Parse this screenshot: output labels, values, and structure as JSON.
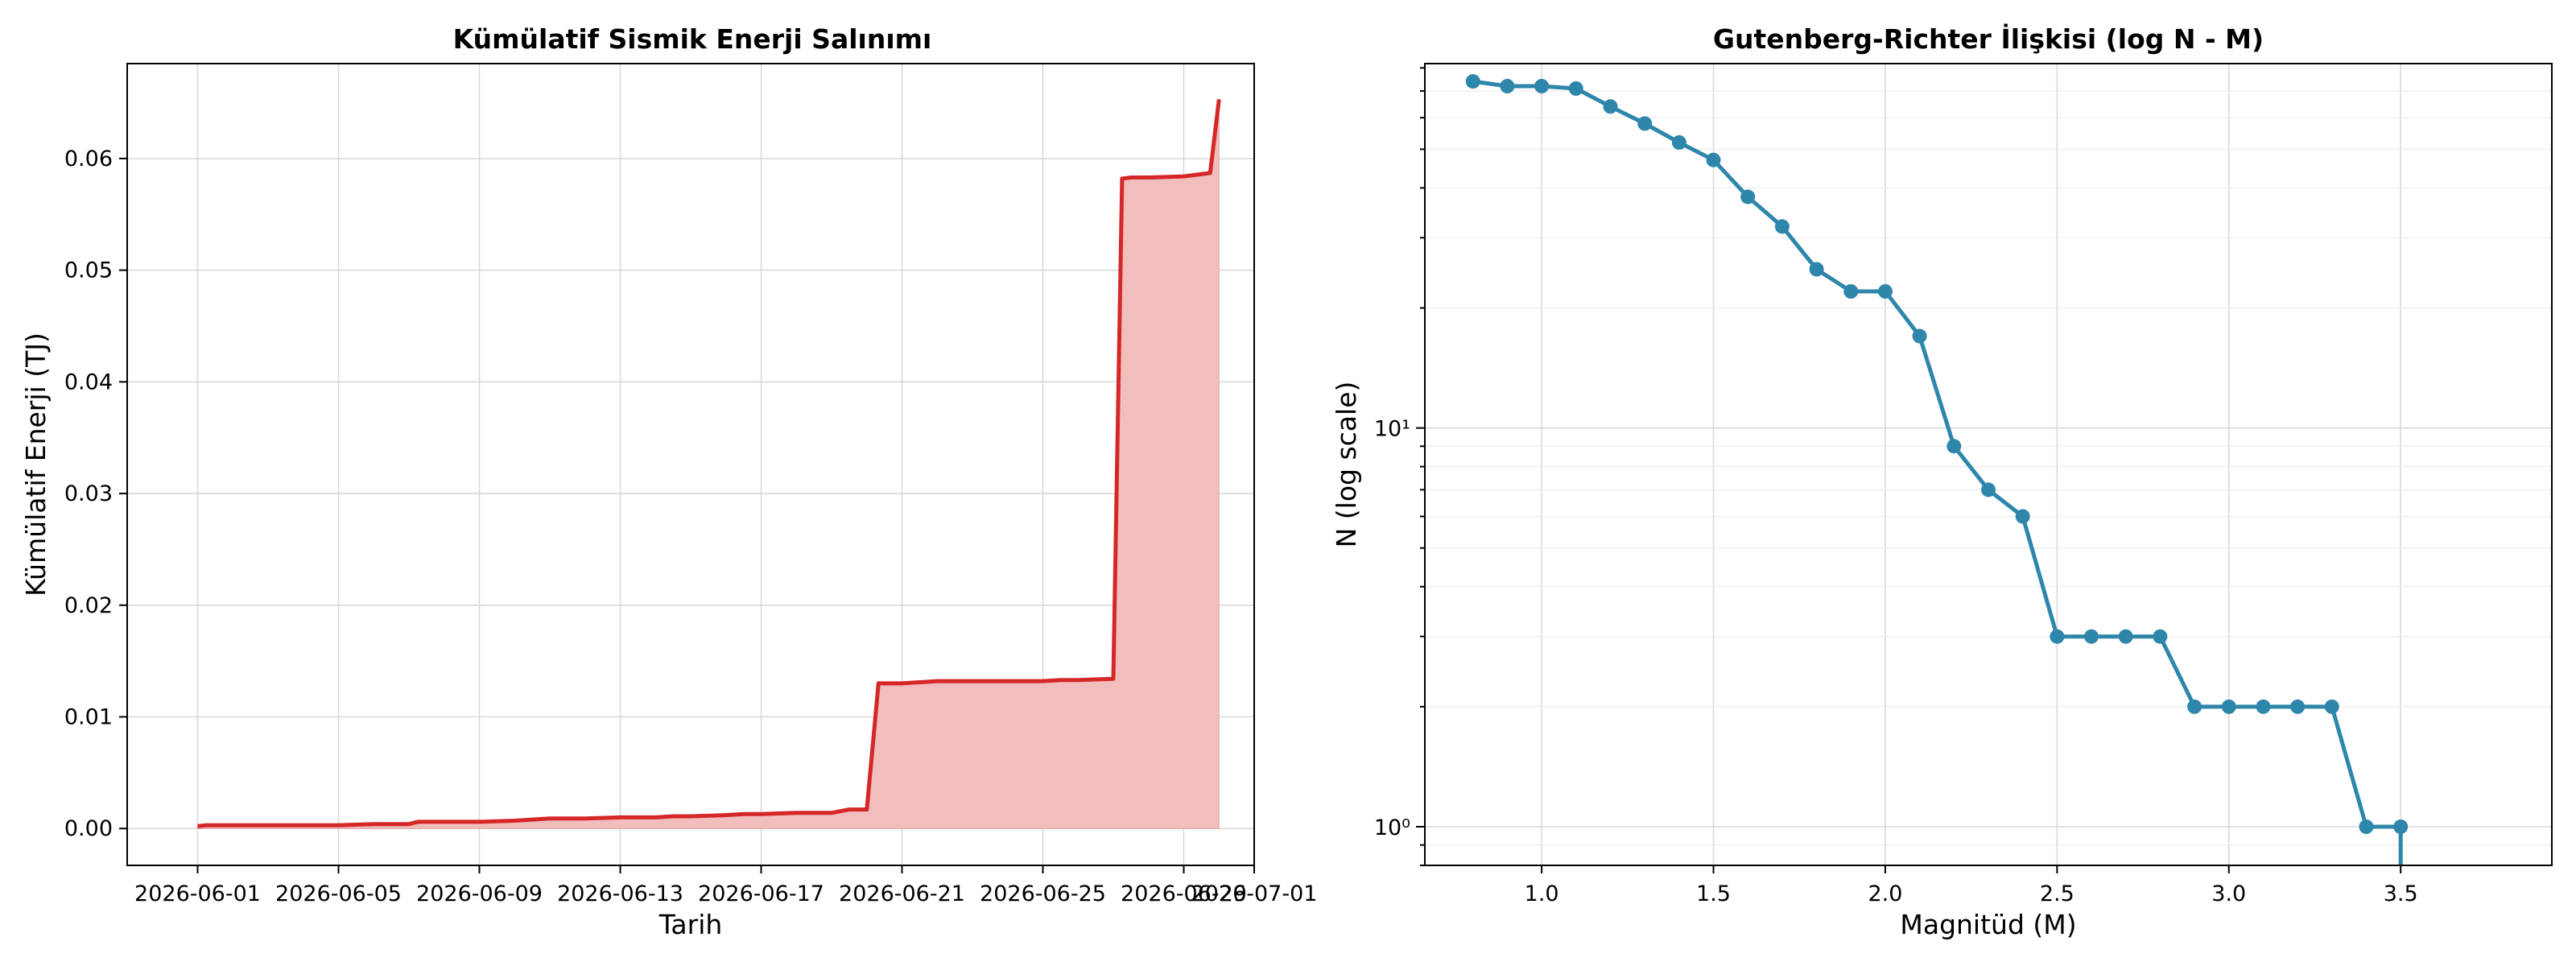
{
  "chart_data": [
    {
      "type": "area",
      "title": "Kümülatif Sismik Enerji Salınımı",
      "xlabel": "Tarih",
      "ylabel": "Kümülatif Enerji (TJ)",
      "x_ticks": [
        "2026-06-01",
        "2026-06-05",
        "2026-06-09",
        "2026-06-13",
        "2026-06-17",
        "2026-06-21",
        "2026-06-25",
        "2026-06-29",
        "2026-07-01"
      ],
      "y_ticks": [
        "0.00",
        "0.01",
        "0.02",
        "0.03",
        "0.04",
        "0.05",
        "0.06"
      ],
      "xlim": [
        "2026-05-30",
        "2026-07-01"
      ],
      "ylim": [
        -0.0033,
        0.0685
      ],
      "grid": true,
      "line_color": "#d62728",
      "fill_color": "#f1bdbd",
      "x": [
        "2026-06-01",
        "2026-06-01T06",
        "2026-06-03",
        "2026-06-05",
        "2026-06-06",
        "2026-06-07",
        "2026-06-07T06",
        "2026-06-08",
        "2026-06-09",
        "2026-06-10",
        "2026-06-11",
        "2026-06-12",
        "2026-06-13",
        "2026-06-14",
        "2026-06-14T12",
        "2026-06-15",
        "2026-06-16",
        "2026-06-16T12",
        "2026-06-17",
        "2026-06-18",
        "2026-06-19",
        "2026-06-19T12",
        "2026-06-20",
        "2026-06-20T08",
        "2026-06-20T16",
        "2026-06-21",
        "2026-06-22",
        "2026-06-23",
        "2026-06-24",
        "2026-06-25",
        "2026-06-25T12",
        "2026-06-26",
        "2026-06-27",
        "2026-06-27T06",
        "2026-06-27T12",
        "2026-06-28",
        "2026-06-29",
        "2026-06-29T18",
        "2026-06-30"
      ],
      "y": [
        0.0002,
        0.0003,
        0.0003,
        0.0003,
        0.0004,
        0.0004,
        0.0006,
        0.0006,
        0.0006,
        0.0007,
        0.0009,
        0.0009,
        0.001,
        0.001,
        0.0011,
        0.0011,
        0.0012,
        0.0013,
        0.0013,
        0.0014,
        0.0014,
        0.0017,
        0.0017,
        0.013,
        0.013,
        0.013,
        0.0132,
        0.0132,
        0.0132,
        0.0132,
        0.0133,
        0.0133,
        0.0134,
        0.0582,
        0.0583,
        0.0583,
        0.0584,
        0.0587,
        0.0653
      ]
    },
    {
      "type": "line",
      "title": "Gutenberg-Richter İlişkisi (log N - M)",
      "xlabel": "Magnitüd (M)",
      "ylabel": "N (log scale)",
      "x_ticks": [
        "1.0",
        "1.5",
        "2.0",
        "2.5",
        "3.0",
        "3.5"
      ],
      "y_ticks": [
        "10⁰",
        "10¹"
      ],
      "xlim": [
        0.66,
        3.94
      ],
      "ylim": [
        0.8,
        82
      ],
      "y_scale": "log",
      "grid": true,
      "color": "#2e86ab",
      "x": [
        0.8,
        0.9,
        1.0,
        1.1,
        1.2,
        1.3,
        1.4,
        1.5,
        1.6,
        1.7,
        1.8,
        1.9,
        2.0,
        2.1,
        2.2,
        2.3,
        2.4,
        2.5,
        2.6,
        2.7,
        2.8,
        2.9,
        3.0,
        3.1,
        3.2,
        3.3,
        3.4,
        3.5
      ],
      "y": [
        74,
        72,
        72,
        71,
        64,
        58,
        52,
        47,
        38,
        32,
        25,
        22,
        22,
        17,
        9,
        7,
        6,
        3,
        3,
        3,
        3,
        2,
        2,
        2,
        2,
        2,
        1,
        1
      ]
    }
  ]
}
